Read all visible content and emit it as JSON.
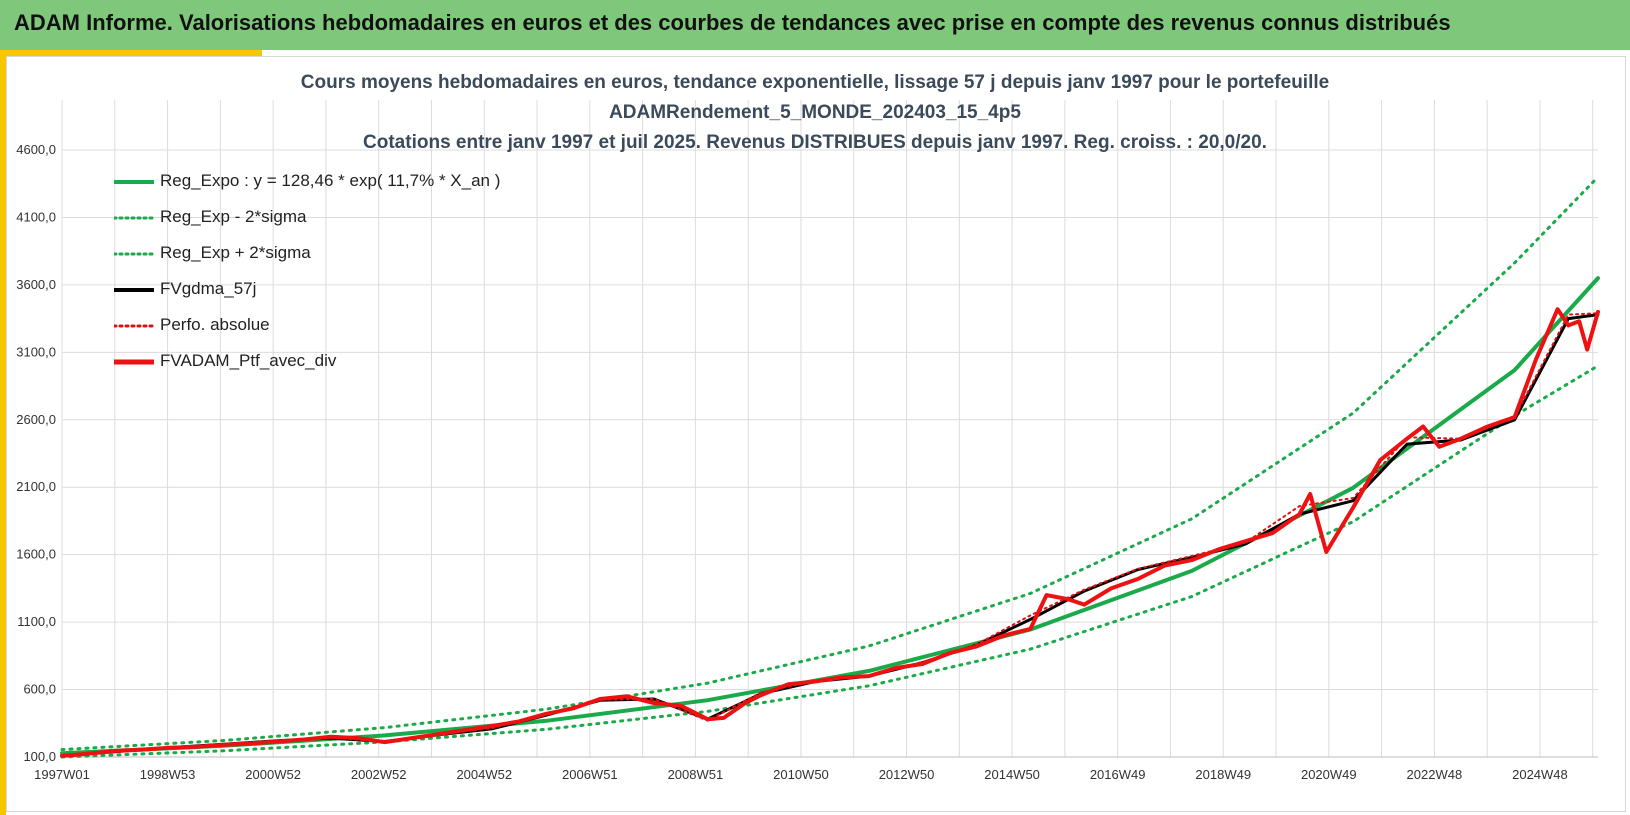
{
  "header": {
    "title": "ADAM Informe. Valorisations hebdomadaires en euros et des courbes de tendances avec prise en compte des revenus connus distribués"
  },
  "chart_data": {
    "type": "line",
    "title_lines": [
      "Cours moyens hebdomadaires  en euros, tendance exponentielle, lissage 57 j depuis janv 1997 pour le portefeuille",
      "ADAMRendement_5_MONDE_202403_15_4p5",
      "Cotations  entre janv 1997 et juil 2025. Revenus DISTRIBUES depuis janv 1997. Reg. croiss. : 20,0/20."
    ],
    "y_tick_labels": [
      "100,0",
      "600,0",
      "1100,0",
      "1600,0",
      "2100,0",
      "2600,0",
      "3100,0",
      "3600,0",
      "4100,0",
      "4600,0"
    ],
    "ylim": [
      100,
      4600
    ],
    "x_tick_labels": [
      "1997W01",
      "1998W53",
      "2000W52",
      "2002W52",
      "2004W52",
      "2006W51",
      "2008W51",
      "2010W50",
      "2012W50",
      "2014W50",
      "2016W49",
      "2018W49",
      "2020W49",
      "2022W48",
      "2024W48"
    ],
    "xlim_years": [
      1997.0,
      2025.55
    ],
    "grid": true,
    "legend_position": "top-left",
    "colors": {
      "trend": "#1aaa4a",
      "band": "#1aaa4a",
      "smooth": "#000000",
      "perf_dotted": "#e01010",
      "portfolio": "#ee1111",
      "grid": "#dcdcdc"
    },
    "legend": [
      {
        "label": "Reg_Expo : y = 128,46 * exp( 11,7% *  X_an )",
        "style": "solid",
        "color": "#1aaa4a"
      },
      {
        "label": "Reg_Exp - 2*sigma",
        "style": "dotted",
        "color": "#1aaa4a"
      },
      {
        "label": "Reg_Exp + 2*sigma",
        "style": "dotted",
        "color": "#1aaa4a"
      },
      {
        "label": "FVgdma_57j",
        "style": "solid",
        "color": "#000000"
      },
      {
        "label": "Perfo. absolue",
        "style": "dotted",
        "color": "#e01010"
      },
      {
        "label": "FVADAM_Ptf_avec_div",
        "style": "solid",
        "color": "#ee1111"
      }
    ],
    "series": [
      {
        "name": "Reg_Expo : y = 128,46 * exp( 11,7% *  X_an )",
        "x": [
          1997.0,
          2000.0,
          2003.0,
          2006.0,
          2009.0,
          2012.0,
          2015.0,
          2018.0,
          2021.0,
          2024.0,
          2025.55
        ],
        "values": [
          128,
          183,
          260,
          368,
          521,
          738,
          1045,
          1480,
          2096,
          2968,
          3650
        ]
      },
      {
        "name": "Reg_Exp - 2*sigma",
        "x": [
          1997.0,
          2000.0,
          2003.0,
          2006.0,
          2009.0,
          2012.0,
          2015.0,
          2018.0,
          2021.0,
          2024.0,
          2025.55
        ],
        "values": [
          100,
          146,
          212,
          305,
          438,
          628,
          900,
          1290,
          1845,
          2630,
          3000
        ]
      },
      {
        "name": "Reg_Exp + 2*sigma",
        "x": [
          1997.0,
          2000.0,
          2003.0,
          2006.0,
          2009.0,
          2012.0,
          2015.0,
          2018.0,
          2021.0,
          2024.0,
          2025.55
        ],
        "values": [
          155,
          222,
          318,
          454,
          648,
          923,
          1313,
          1866,
          2650,
          3763,
          4400
        ]
      },
      {
        "name": "FVgdma_57j",
        "x": [
          1997.0,
          1998.0,
          1999.0,
          2000.0,
          2001.0,
          2002.0,
          2003.0,
          2004.0,
          2005.0,
          2006.0,
          2007.0,
          2008.0,
          2009.0,
          2010.0,
          2011.0,
          2012.0,
          2013.0,
          2014.0,
          2015.0,
          2016.0,
          2017.0,
          2018.0,
          2019.0,
          2020.0,
          2021.0,
          2022.0,
          2023.0,
          2024.0,
          2025.0,
          2025.55
        ],
        "values": [
          110,
          140,
          170,
          195,
          220,
          240,
          215,
          265,
          310,
          410,
          520,
          530,
          380,
          570,
          660,
          700,
          800,
          930,
          1120,
          1330,
          1490,
          1580,
          1680,
          1900,
          2000,
          2420,
          2450,
          2600,
          3350,
          3380
        ]
      },
      {
        "name": "Perfo. absolue",
        "x": [
          1997.0,
          1998.0,
          1999.0,
          2000.0,
          2001.0,
          2002.0,
          2003.0,
          2004.0,
          2005.0,
          2006.0,
          2007.0,
          2008.0,
          2009.0,
          2010.0,
          2011.0,
          2012.0,
          2013.0,
          2014.0,
          2015.0,
          2016.0,
          2017.0,
          2018.0,
          2019.0,
          2020.0,
          2021.0,
          2022.0,
          2023.0,
          2024.0,
          2025.0,
          2025.55
        ],
        "values": [
          110,
          142,
          172,
          196,
          222,
          245,
          212,
          268,
          315,
          420,
          525,
          530,
          370,
          580,
          665,
          705,
          805,
          935,
          1150,
          1340,
          1495,
          1590,
          1690,
          1960,
          2020,
          2470,
          2460,
          2620,
          3380,
          3390
        ]
      },
      {
        "name": "FVADAM_Ptf_avec_div",
        "x": [
          1997.0,
          1997.5,
          1998.0,
          1998.5,
          1999.0,
          1999.5,
          2000.0,
          2000.5,
          2001.0,
          2001.5,
          2002.0,
          2002.5,
          2003.0,
          2003.5,
          2004.0,
          2004.5,
          2005.0,
          2005.5,
          2006.0,
          2006.5,
          2007.0,
          2007.5,
          2008.0,
          2008.5,
          2009.0,
          2009.3,
          2009.7,
          2010.0,
          2010.5,
          2011.0,
          2011.5,
          2012.0,
          2012.5,
          2013.0,
          2013.5,
          2014.0,
          2014.5,
          2015.0,
          2015.3,
          2015.7,
          2016.0,
          2016.5,
          2017.0,
          2017.5,
          2018.0,
          2018.5,
          2019.0,
          2019.5,
          2020.0,
          2020.2,
          2020.5,
          2021.0,
          2021.5,
          2022.0,
          2022.3,
          2022.6,
          2023.0,
          2023.5,
          2024.0,
          2024.4,
          2024.8,
          2025.0,
          2025.2,
          2025.35,
          2025.55
        ],
        "values": [
          108,
          125,
          145,
          155,
          168,
          175,
          190,
          200,
          215,
          230,
          250,
          240,
          210,
          240,
          270,
          300,
          330,
          365,
          420,
          460,
          530,
          550,
          500,
          480,
          380,
          390,
          500,
          560,
          640,
          660,
          690,
          700,
          760,
          790,
          870,
          920,
          1000,
          1050,
          1300,
          1270,
          1230,
          1350,
          1420,
          1520,
          1560,
          1640,
          1700,
          1760,
          1900,
          2050,
          1620,
          1950,
          2300,
          2460,
          2550,
          2400,
          2460,
          2550,
          2620,
          3050,
          3420,
          3300,
          3330,
          3120,
          3400
        ]
      }
    ]
  }
}
